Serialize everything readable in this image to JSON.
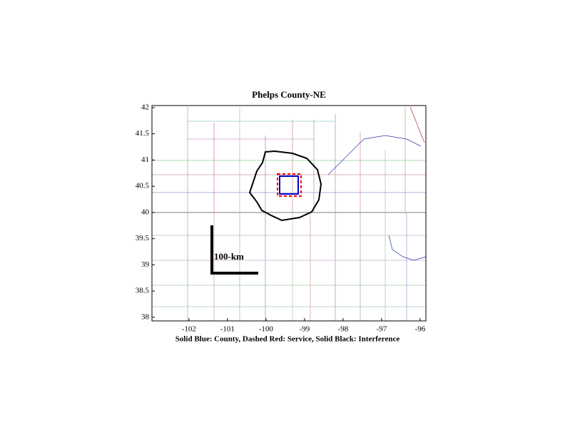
{
  "chart_data": {
    "type": "map",
    "title": "Phelps County-NE",
    "xlabel": "Solid Blue: County, Dashed Red: Service, Solid Black: Interference",
    "xlim": [
      -102.96,
      -95.85
    ],
    "ylim": [
      37.93,
      42.04
    ],
    "xticks": [
      -102,
      -101,
      -100,
      -99,
      -98,
      -97,
      -96
    ],
    "yticks": [
      38,
      38.5,
      39,
      39.5,
      40,
      40.5,
      41,
      41.5,
      42
    ],
    "scale_label": "100-km"
  }
}
